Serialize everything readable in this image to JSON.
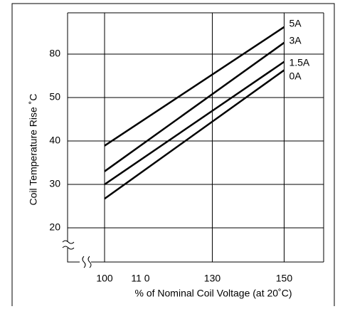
{
  "chart_data": {
    "type": "line",
    "x_label": "% of Nominal Coil Voltage (at 20˚C)",
    "y_label": "Coil Temperature Rise ˚C",
    "x": [
      100,
      150
    ],
    "series": [
      {
        "name": "5A",
        "color": "#000000",
        "values": [
          38.9,
          98.7
        ]
      },
      {
        "name": "3A",
        "color": "#000000",
        "values": [
          33.0,
          87.9
        ]
      },
      {
        "name": "1.5A",
        "color": "#000000",
        "values": [
          30,
          74.7
        ]
      },
      {
        "name": "0A",
        "color": "#000000",
        "values": [
          26.7,
          68.9
        ]
      }
    ],
    "xlim": [
      89.7,
      161
    ],
    "xticks": [
      100,
      {
        "value": 110,
        "label": "11 0"
      },
      130,
      150
    ],
    "xgrid": [
      true,
      false,
      true,
      true
    ],
    "ylim": [
      12,
      108
    ],
    "yticks": [
      20,
      30,
      40,
      50,
      80
    ],
    "grid": true
  }
}
